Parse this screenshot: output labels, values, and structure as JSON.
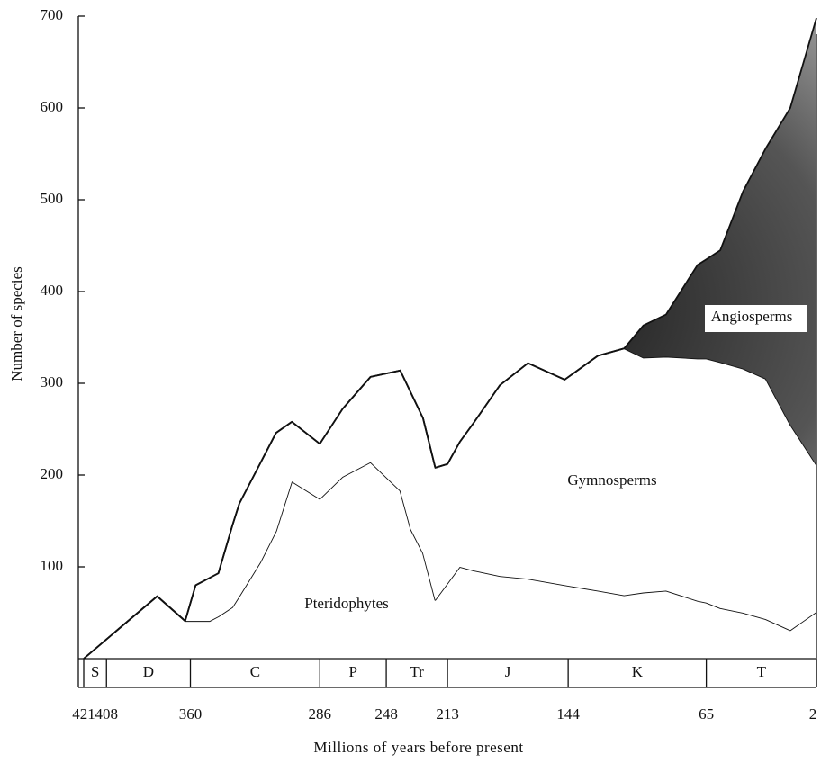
{
  "chart_data": {
    "type": "stacked_area",
    "y_label": "Number of species",
    "x_label": "Millions of years before present",
    "x": [
      421,
      379,
      363,
      357,
      349,
      344,
      336,
      332,
      320,
      311,
      302,
      286,
      273,
      257,
      240,
      234,
      227,
      220,
      213,
      206,
      198,
      183,
      167,
      146,
      127,
      112,
      101,
      88,
      70,
      65,
      57,
      44,
      31,
      17,
      2
    ],
    "series": [
      {
        "name": "Pteridophytes",
        "color": "#ffffff",
        "values": [
          0,
          68,
          41,
          41,
          41,
          46,
          56,
          68,
          105,
          139,
          193,
          174,
          198,
          214,
          183,
          141,
          115,
          64,
          82,
          100,
          96,
          90,
          87,
          80,
          74,
          69,
          72,
          74,
          63,
          61,
          55,
          50,
          43,
          31,
          51
        ]
      },
      {
        "name": "Gymnosperms",
        "color": "#ffffff",
        "values": [
          0,
          0,
          0,
          39,
          47,
          47,
          89,
          101,
          108,
          107,
          65,
          60,
          74,
          93,
          131,
          149,
          147,
          144,
          130,
          136,
          161,
          208,
          235,
          224,
          256,
          269,
          256,
          255,
          264,
          266,
          268,
          266,
          262,
          224,
          160
        ]
      },
      {
        "name": "Angiosperms",
        "color": "#3a3a3a",
        "values": [
          0,
          0,
          0,
          0,
          0,
          0,
          0,
          0,
          0,
          0,
          0,
          0,
          0,
          0,
          0,
          0,
          0,
          0,
          0,
          0,
          0,
          0,
          0,
          0,
          0,
          0,
          35,
          46,
          102,
          108,
          122,
          193,
          251,
          345,
          487
        ]
      }
    ],
    "xlim": [
      421,
      2
    ],
    "xticks": [
      421,
      408,
      360,
      286,
      248,
      213,
      144,
      65,
      2
    ],
    "periods": [
      "S",
      "D",
      "C",
      "P",
      "Tr",
      "J",
      "K",
      "T"
    ],
    "ylim": [
      0,
      700
    ],
    "yticks": [
      100,
      200,
      300,
      400,
      500,
      600,
      700
    ]
  }
}
